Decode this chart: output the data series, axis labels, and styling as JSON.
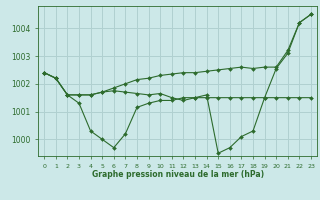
{
  "background_color": "#cce8e8",
  "plot_bg_color": "#cce8e8",
  "grid_color": "#b0d0d0",
  "line_color": "#2d6b2d",
  "xlabel": "Graphe pression niveau de la mer (hPa)",
  "xlim": [
    -0.5,
    23.5
  ],
  "ylim": [
    999.4,
    1004.8
  ],
  "yticks": [
    1000,
    1001,
    1002,
    1003,
    1004
  ],
  "xticks": [
    0,
    1,
    2,
    3,
    4,
    5,
    6,
    7,
    8,
    9,
    10,
    11,
    12,
    13,
    14,
    15,
    16,
    17,
    18,
    19,
    20,
    21,
    22,
    23
  ],
  "series": [
    [
      1002.4,
      1002.2,
      1001.6,
      1001.3,
      1000.3,
      1000.0,
      999.7,
      1000.2,
      1001.15,
      1001.3,
      1001.4,
      1001.4,
      1001.5,
      1001.5,
      1001.6,
      999.5,
      999.7,
      1000.1,
      1000.3,
      1001.5,
      1002.55,
      1003.1,
      1004.2,
      1004.5
    ],
    [
      1002.4,
      1002.2,
      1001.6,
      1001.6,
      1001.6,
      1001.7,
      1001.85,
      1002.0,
      1002.15,
      1002.2,
      1002.3,
      1002.35,
      1002.4,
      1002.4,
      1002.45,
      1002.5,
      1002.55,
      1002.6,
      1002.55,
      1002.6,
      1002.6,
      1003.2,
      1004.2,
      1004.5
    ],
    [
      1002.4,
      1002.2,
      1001.6,
      1001.6,
      1001.6,
      1001.7,
      1001.75,
      1001.7,
      1001.65,
      1001.6,
      1001.65,
      1001.5,
      1001.4,
      1001.5,
      1001.5,
      1001.5,
      1001.5,
      1001.5,
      1001.5,
      1001.5,
      1001.5,
      1001.5,
      1001.5,
      1001.5
    ]
  ]
}
